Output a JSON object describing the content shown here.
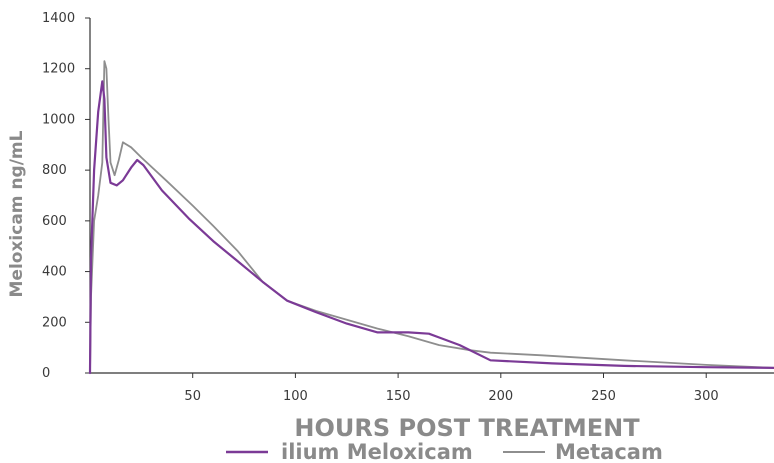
{
  "chart_data": {
    "type": "line",
    "xlabel": "HOURS POST TREATMENT",
    "ylabel": "Meloxicam ng/mL",
    "xlim": [
      0,
      333
    ],
    "ylim": [
      0,
      1400
    ],
    "x_ticks": [
      50,
      100,
      150,
      200,
      250,
      300
    ],
    "y_ticks": [
      0,
      200,
      400,
      600,
      800,
      1000,
      1200,
      1400
    ],
    "grid": false,
    "legend_position": "bottom",
    "series": [
      {
        "name": "ilium Meloxicam",
        "color": "#7b3a96",
        "points": [
          [
            0,
            0
          ],
          [
            0.5,
            450
          ],
          [
            2,
            800
          ],
          [
            4,
            1030
          ],
          [
            6,
            1150
          ],
          [
            7,
            1080
          ],
          [
            8,
            850
          ],
          [
            10,
            750
          ],
          [
            13,
            740
          ],
          [
            16,
            760
          ],
          [
            20,
            810
          ],
          [
            23,
            840
          ],
          [
            26,
            820
          ],
          [
            35,
            720
          ],
          [
            48,
            610
          ],
          [
            60,
            520
          ],
          [
            72,
            440
          ],
          [
            84,
            360
          ],
          [
            96,
            285
          ],
          [
            110,
            240
          ],
          [
            125,
            195
          ],
          [
            140,
            160
          ],
          [
            155,
            160
          ],
          [
            165,
            155
          ],
          [
            170,
            140
          ],
          [
            180,
            110
          ],
          [
            195,
            50
          ],
          [
            225,
            38
          ],
          [
            260,
            28
          ],
          [
            300,
            23
          ],
          [
            333,
            20
          ]
        ]
      },
      {
        "name": "Metacam",
        "color": "#8e8e8e",
        "points": [
          [
            0,
            0
          ],
          [
            0.5,
            300
          ],
          [
            2,
            600
          ],
          [
            4,
            700
          ],
          [
            6,
            830
          ],
          [
            7,
            1230
          ],
          [
            8,
            1200
          ],
          [
            9,
            1000
          ],
          [
            10,
            830
          ],
          [
            12,
            780
          ],
          [
            14,
            840
          ],
          [
            16,
            910
          ],
          [
            20,
            890
          ],
          [
            25,
            850
          ],
          [
            37,
            760
          ],
          [
            50,
            660
          ],
          [
            60,
            580
          ],
          [
            72,
            480
          ],
          [
            84,
            360
          ],
          [
            96,
            285
          ],
          [
            110,
            245
          ],
          [
            125,
            210
          ],
          [
            140,
            175
          ],
          [
            155,
            145
          ],
          [
            170,
            110
          ],
          [
            185,
            90
          ],
          [
            195,
            80
          ],
          [
            220,
            70
          ],
          [
            260,
            50
          ],
          [
            300,
            32
          ],
          [
            333,
            20
          ]
        ]
      }
    ]
  }
}
